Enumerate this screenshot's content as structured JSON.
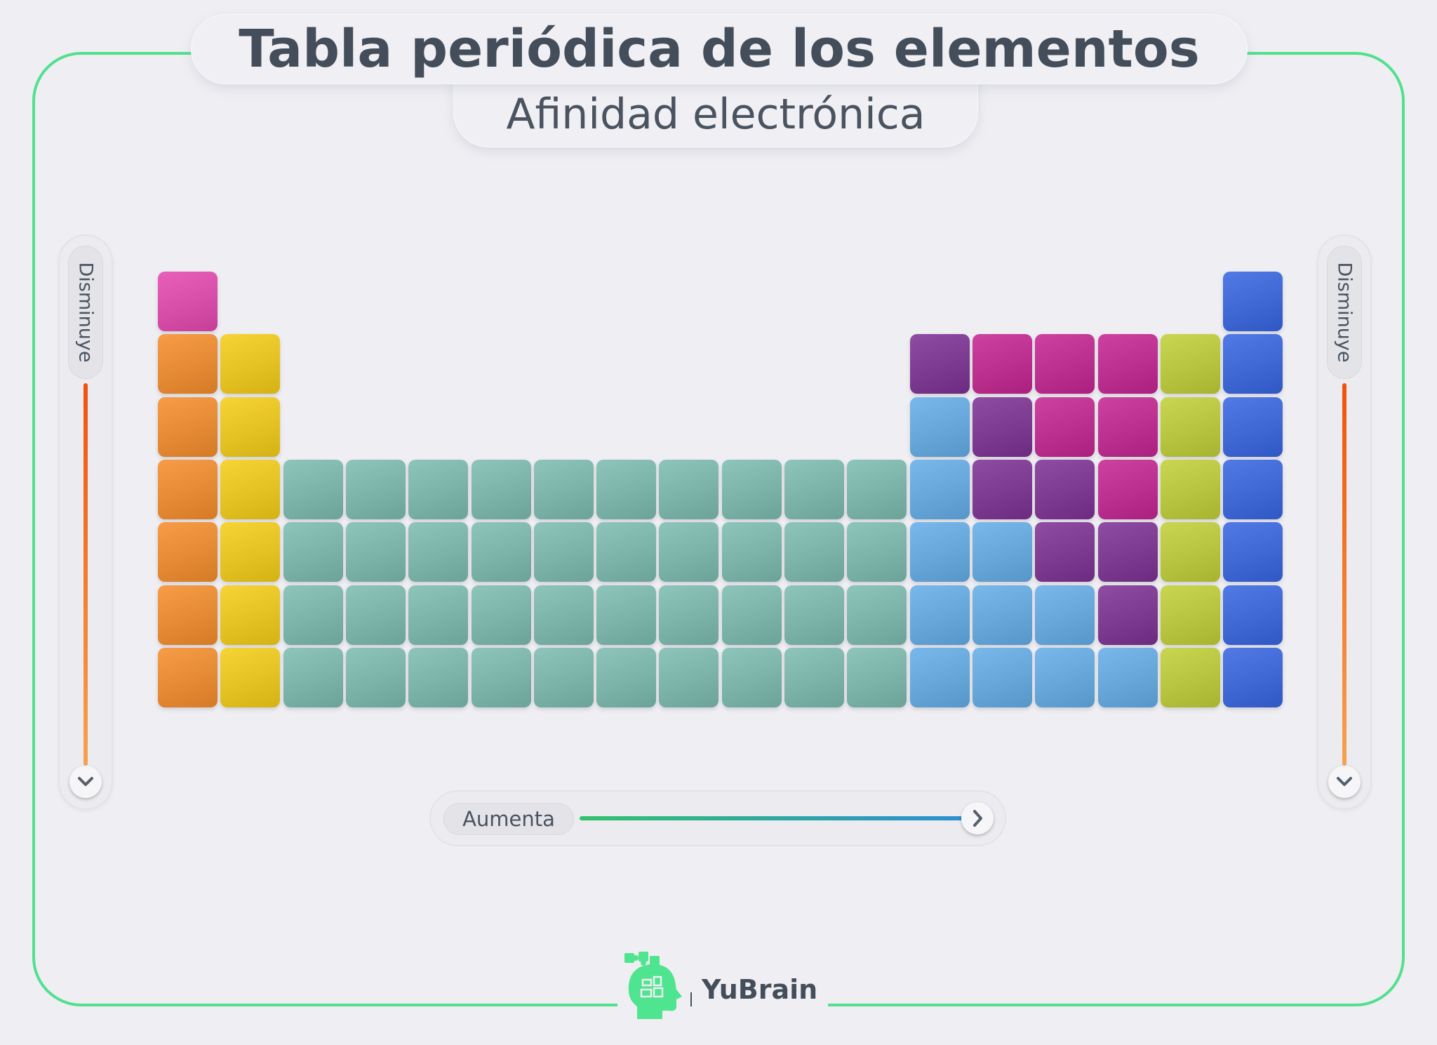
{
  "header": {
    "title": "Tabla periódica de los elementos",
    "subtitle": "Afinidad electrónica"
  },
  "left_arrow": {
    "label": "Disminuye",
    "icon": "chevron-down-icon"
  },
  "right_arrow": {
    "label": "Disminuye",
    "icon": "chevron-down-icon"
  },
  "bottom_arrow": {
    "label": "Aumenta",
    "icon": "chevron-right-icon"
  },
  "logo": {
    "text": "YuBrain",
    "icon": "head-puzzle-icon"
  },
  "colors": {
    "frame": "#52e08f",
    "vertical_arrow_gradient": [
      "#f0520e",
      "#f6a24f"
    ],
    "horizontal_arrow_gradient": [
      "#33c26b",
      "#2c8fd4"
    ]
  },
  "palette": {
    "P": "#d64ea8",
    "O": "#e58a35",
    "Y": "#e5c223",
    "T": "#7cb3a9",
    "L": "#66a6d9",
    "V": "#7d3a91",
    "M": "#bb2f8f",
    "G": "#b7c43f",
    "B": "#3f68d4"
  },
  "grid": [
    "P................B",
    "OY..........VMMMGB",
    "OY..........LVMMGB",
    "OYTTTTTTTTTTLVVMGB",
    "OYTTTTTTTTTTLLVVGB",
    "OYTTTTTTTTTTLLLVGB",
    "OYTTTTTTTTTTLLLLGB"
  ]
}
